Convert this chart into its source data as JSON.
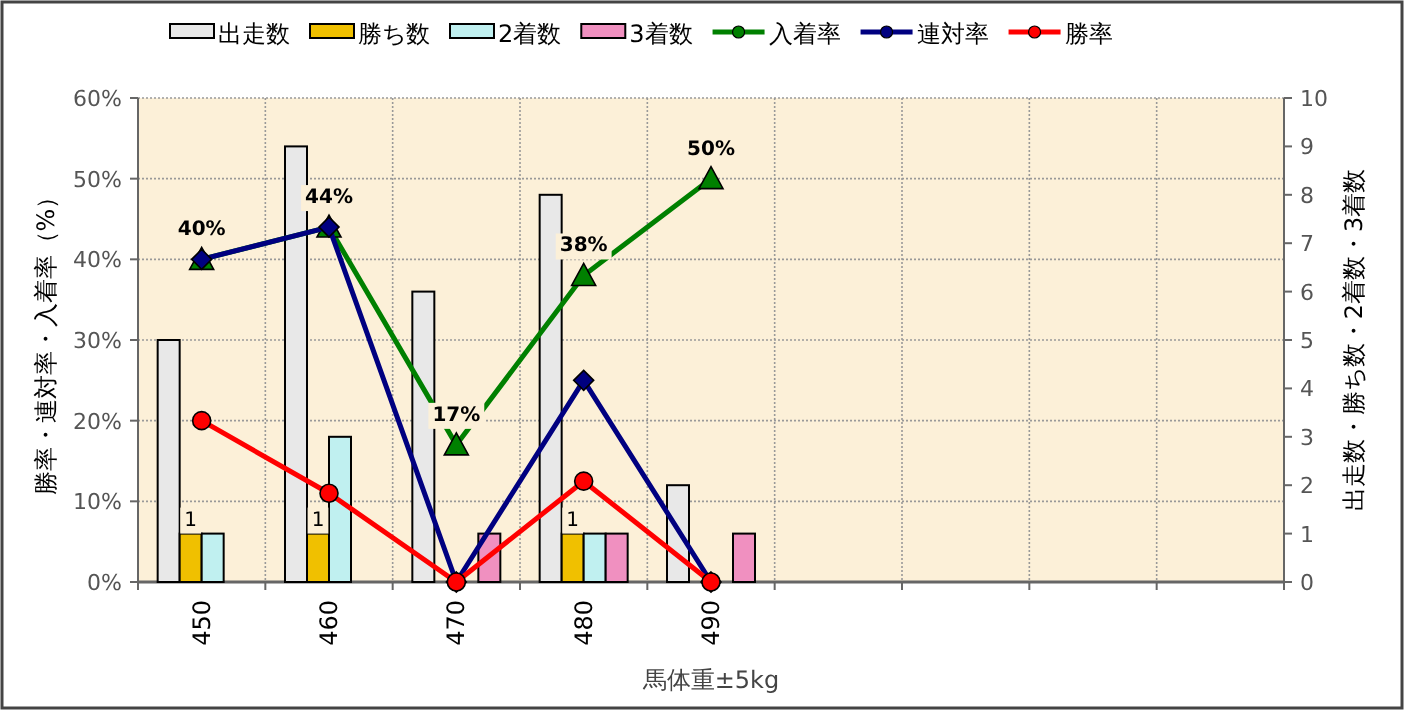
{
  "chart_data": {
    "type": "bar",
    "xlabel": "馬体重±5kg",
    "ylabel": "勝率・連対率・入着率（%）",
    "y2label": "出走数・勝ち数・2着数・3着数",
    "categories": [
      "450",
      "460",
      "470",
      "480",
      "490",
      null,
      null,
      null,
      null
    ],
    "series": [
      {
        "name": "出走数",
        "axis": "y2",
        "color": "#e8e8e8",
        "values": [
          5,
          9,
          6,
          8,
          2,
          null,
          null,
          null,
          null
        ]
      },
      {
        "name": "勝ち数",
        "axis": "y2",
        "color": "#f0c000",
        "values": [
          1,
          1,
          0,
          1,
          0,
          null,
          null,
          null,
          null
        ],
        "value_labels": [
          "1",
          "1",
          null,
          "1",
          null,
          null,
          null,
          null,
          null
        ]
      },
      {
        "name": "2着数",
        "axis": "y2",
        "color": "#c0f0f0",
        "values": [
          1,
          3,
          0,
          1,
          0,
          null,
          null,
          null,
          null
        ]
      },
      {
        "name": "3着数",
        "axis": "y2",
        "color": "#f090c0",
        "values": [
          0,
          0,
          1,
          1,
          1,
          null,
          null,
          null,
          null
        ]
      },
      {
        "name": "入着率",
        "type": "line",
        "marker": "triangle",
        "color": "#008000",
        "values": [
          40,
          44,
          17,
          38,
          50,
          null,
          null,
          null,
          null
        ],
        "value_labels": [
          "40%",
          "44%",
          "17%",
          "38%",
          "50%",
          null,
          null,
          null,
          null
        ]
      },
      {
        "name": "連対率",
        "type": "line",
        "marker": "diamond",
        "color": "#000080",
        "values": [
          40,
          44,
          0,
          25,
          0,
          null,
          null,
          null,
          null
        ]
      },
      {
        "name": "勝率",
        "type": "line",
        "marker": "circle",
        "color": "#ff0000",
        "values": [
          20,
          11,
          0,
          12.5,
          0,
          null,
          null,
          null,
          null
        ]
      }
    ],
    "ylim": [
      0,
      60
    ],
    "yticks": [
      {
        "value": 0,
        "label": "0%"
      },
      {
        "value": 10,
        "label": "10%"
      },
      {
        "value": 20,
        "label": "20%"
      },
      {
        "value": 30,
        "label": "30%"
      },
      {
        "value": 40,
        "label": "40%"
      },
      {
        "value": 50,
        "label": "50%"
      },
      {
        "value": 60,
        "label": "60%"
      }
    ],
    "y2lim": [
      0,
      10
    ],
    "y2ticks": [
      0,
      1,
      2,
      3,
      4,
      5,
      6,
      7,
      8,
      9,
      10
    ],
    "grid": true,
    "legend": "top"
  }
}
